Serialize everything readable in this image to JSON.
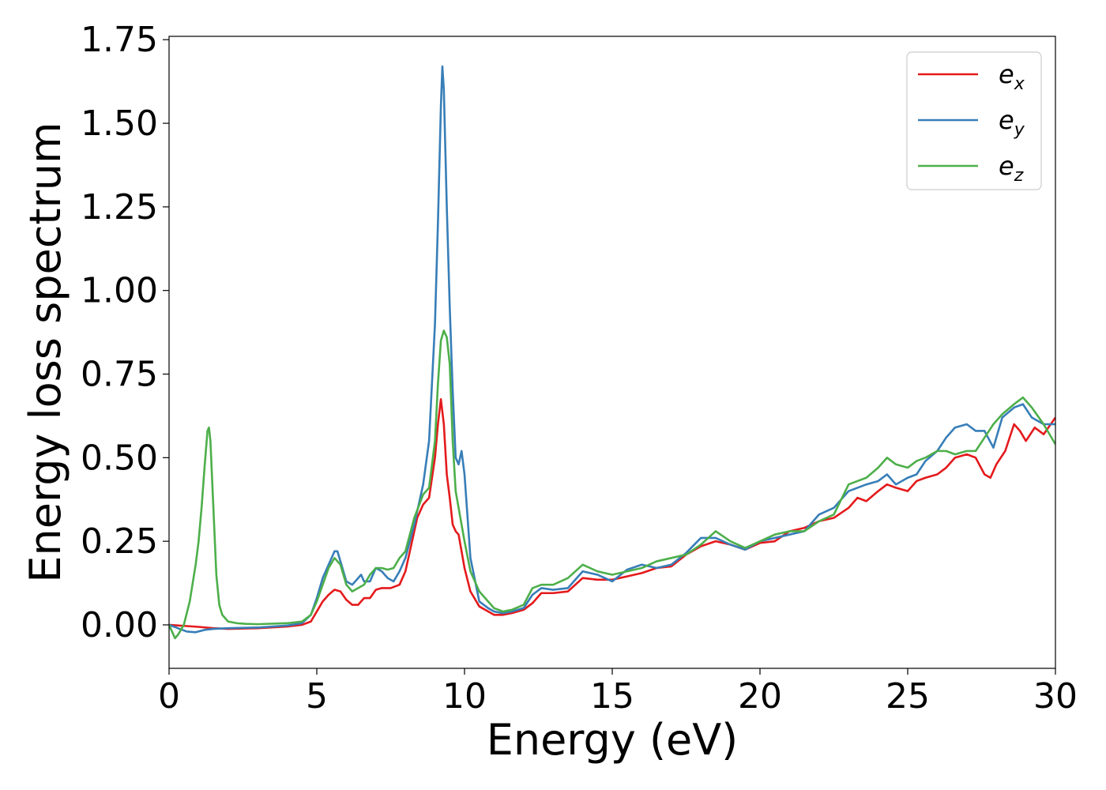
{
  "chart_data": {
    "type": "line",
    "title": "",
    "xlabel": "Energy (eV)",
    "ylabel": "Energy loss spectrum",
    "xlim": [
      0,
      30
    ],
    "ylim": [
      -0.13,
      1.76
    ],
    "xticks": [
      0,
      5,
      10,
      15,
      20,
      25,
      30
    ],
    "xtick_labels": [
      "0",
      "5",
      "10",
      "15",
      "20",
      "25",
      "30"
    ],
    "yticks": [
      0.0,
      0.25,
      0.5,
      0.75,
      1.0,
      1.25,
      1.5,
      1.75
    ],
    "ytick_labels": [
      "0.00",
      "0.25",
      "0.50",
      "0.75",
      "1.00",
      "1.25",
      "1.50",
      "1.75"
    ],
    "grid": false,
    "legend_position": "top-right",
    "series": [
      {
        "name": "e_x",
        "legend_base": "e",
        "legend_sub": "x",
        "color": "#e41a1c",
        "x": [
          0,
          0.5,
          1.0,
          1.5,
          2.0,
          3.0,
          4.0,
          4.5,
          4.8,
          5.0,
          5.2,
          5.4,
          5.6,
          5.8,
          6.0,
          6.2,
          6.4,
          6.6,
          6.8,
          7.0,
          7.2,
          7.5,
          7.8,
          8.0,
          8.2,
          8.4,
          8.6,
          8.8,
          9.0,
          9.1,
          9.2,
          9.3,
          9.4,
          9.5,
          9.6,
          9.7,
          9.8,
          9.9,
          10.0,
          10.2,
          10.5,
          10.8,
          11.0,
          11.3,
          11.6,
          12.0,
          12.3,
          12.6,
          13.0,
          13.5,
          14.0,
          14.5,
          15.0,
          15.5,
          16.0,
          16.5,
          17.0,
          17.5,
          18.0,
          18.5,
          19.0,
          19.5,
          20.0,
          20.5,
          21.0,
          21.5,
          22.0,
          22.5,
          23.0,
          23.3,
          23.6,
          24.0,
          24.3,
          24.6,
          25.0,
          25.3,
          25.6,
          26.0,
          26.3,
          26.6,
          27.0,
          27.3,
          27.6,
          27.8,
          28.0,
          28.3,
          28.6,
          28.8,
          29.0,
          29.3,
          29.6,
          30.0
        ],
        "y": [
          0.0,
          -0.003,
          -0.006,
          -0.01,
          -0.012,
          -0.01,
          -0.005,
          0.0,
          0.01,
          0.04,
          0.07,
          0.09,
          0.105,
          0.1,
          0.075,
          0.06,
          0.06,
          0.08,
          0.08,
          0.105,
          0.11,
          0.11,
          0.12,
          0.16,
          0.24,
          0.32,
          0.36,
          0.38,
          0.5,
          0.6,
          0.675,
          0.6,
          0.45,
          0.38,
          0.3,
          0.28,
          0.27,
          0.22,
          0.17,
          0.1,
          0.055,
          0.04,
          0.03,
          0.03,
          0.035,
          0.045,
          0.065,
          0.095,
          0.095,
          0.1,
          0.14,
          0.135,
          0.135,
          0.145,
          0.155,
          0.17,
          0.175,
          0.21,
          0.235,
          0.25,
          0.24,
          0.225,
          0.245,
          0.25,
          0.28,
          0.29,
          0.31,
          0.32,
          0.35,
          0.38,
          0.37,
          0.4,
          0.42,
          0.41,
          0.4,
          0.43,
          0.44,
          0.45,
          0.47,
          0.5,
          0.51,
          0.5,
          0.45,
          0.44,
          0.48,
          0.52,
          0.6,
          0.58,
          0.55,
          0.59,
          0.57,
          0.62
        ]
      },
      {
        "name": "e_y",
        "legend_base": "e",
        "legend_sub": "y",
        "color": "#377eb8",
        "x": [
          0,
          0.3,
          0.6,
          0.9,
          1.2,
          1.5,
          2.0,
          3.0,
          4.0,
          4.5,
          4.8,
          5.0,
          5.2,
          5.4,
          5.6,
          5.7,
          5.8,
          6.0,
          6.2,
          6.4,
          6.5,
          6.6,
          6.8,
          7.0,
          7.2,
          7.4,
          7.6,
          7.8,
          8.0,
          8.3,
          8.6,
          8.8,
          9.0,
          9.1,
          9.2,
          9.25,
          9.3,
          9.4,
          9.5,
          9.6,
          9.7,
          9.8,
          9.9,
          10.0,
          10.2,
          10.5,
          10.8,
          11.0,
          11.3,
          11.6,
          12.0,
          12.3,
          12.6,
          13.0,
          13.5,
          14.0,
          14.5,
          15.0,
          15.5,
          16.0,
          16.5,
          17.0,
          17.5,
          18.0,
          18.5,
          19.0,
          19.5,
          20.0,
          20.5,
          21.0,
          21.5,
          22.0,
          22.5,
          23.0,
          23.3,
          23.6,
          24.0,
          24.3,
          24.6,
          25.0,
          25.3,
          25.6,
          26.0,
          26.3,
          26.6,
          27.0,
          27.3,
          27.6,
          27.9,
          28.2,
          28.6,
          28.9,
          29.2,
          29.6,
          30.0
        ],
        "y": [
          0.0,
          -0.01,
          -0.02,
          -0.022,
          -0.015,
          -0.012,
          -0.01,
          -0.008,
          -0.002,
          0.005,
          0.03,
          0.08,
          0.14,
          0.18,
          0.22,
          0.22,
          0.19,
          0.13,
          0.12,
          0.14,
          0.15,
          0.13,
          0.13,
          0.17,
          0.16,
          0.14,
          0.13,
          0.16,
          0.2,
          0.3,
          0.42,
          0.55,
          0.9,
          1.2,
          1.55,
          1.67,
          1.6,
          1.25,
          0.95,
          0.7,
          0.5,
          0.48,
          0.52,
          0.45,
          0.2,
          0.07,
          0.05,
          0.04,
          0.035,
          0.04,
          0.05,
          0.09,
          0.11,
          0.105,
          0.11,
          0.16,
          0.15,
          0.13,
          0.165,
          0.18,
          0.17,
          0.18,
          0.215,
          0.26,
          0.26,
          0.24,
          0.225,
          0.25,
          0.26,
          0.27,
          0.28,
          0.33,
          0.35,
          0.4,
          0.41,
          0.42,
          0.43,
          0.45,
          0.42,
          0.44,
          0.45,
          0.49,
          0.52,
          0.56,
          0.59,
          0.6,
          0.58,
          0.58,
          0.53,
          0.62,
          0.65,
          0.66,
          0.62,
          0.6,
          0.6
        ]
      },
      {
        "name": "e_z",
        "legend_base": "e",
        "legend_sub": "z",
        "color": "#4daf4a",
        "x": [
          0,
          0.1,
          0.2,
          0.3,
          0.5,
          0.7,
          0.9,
          1.0,
          1.1,
          1.2,
          1.3,
          1.35,
          1.4,
          1.5,
          1.6,
          1.7,
          1.8,
          2.0,
          2.3,
          2.6,
          3.0,
          4.0,
          4.5,
          4.8,
          5.0,
          5.2,
          5.4,
          5.6,
          5.8,
          6.0,
          6.2,
          6.4,
          6.6,
          6.8,
          7.0,
          7.2,
          7.4,
          7.6,
          7.8,
          8.0,
          8.3,
          8.6,
          8.8,
          9.0,
          9.1,
          9.2,
          9.3,
          9.4,
          9.5,
          9.6,
          9.7,
          9.8,
          9.9,
          10.0,
          10.2,
          10.5,
          10.8,
          11.0,
          11.3,
          11.6,
          12.0,
          12.3,
          12.6,
          13.0,
          13.5,
          14.0,
          14.5,
          15.0,
          15.5,
          16.0,
          16.5,
          17.0,
          17.5,
          18.0,
          18.5,
          19.0,
          19.5,
          20.0,
          20.5,
          21.0,
          21.5,
          22.0,
          22.5,
          23.0,
          23.3,
          23.6,
          24.0,
          24.3,
          24.6,
          25.0,
          25.3,
          25.6,
          26.0,
          26.3,
          26.6,
          27.0,
          27.3,
          27.6,
          27.9,
          28.2,
          28.6,
          28.9,
          29.2,
          29.6,
          30.0
        ],
        "y": [
          0.0,
          -0.02,
          -0.04,
          -0.03,
          0.0,
          0.07,
          0.18,
          0.25,
          0.35,
          0.47,
          0.58,
          0.59,
          0.55,
          0.35,
          0.15,
          0.06,
          0.03,
          0.01,
          0.005,
          0.003,
          0.002,
          0.005,
          0.01,
          0.03,
          0.07,
          0.12,
          0.17,
          0.2,
          0.18,
          0.12,
          0.1,
          0.11,
          0.12,
          0.15,
          0.17,
          0.17,
          0.165,
          0.17,
          0.2,
          0.22,
          0.32,
          0.39,
          0.41,
          0.55,
          0.72,
          0.85,
          0.88,
          0.86,
          0.78,
          0.55,
          0.4,
          0.35,
          0.3,
          0.25,
          0.16,
          0.1,
          0.07,
          0.05,
          0.04,
          0.045,
          0.06,
          0.11,
          0.12,
          0.12,
          0.14,
          0.18,
          0.16,
          0.15,
          0.16,
          0.17,
          0.19,
          0.2,
          0.21,
          0.24,
          0.28,
          0.25,
          0.23,
          0.25,
          0.27,
          0.28,
          0.28,
          0.31,
          0.33,
          0.42,
          0.43,
          0.44,
          0.47,
          0.5,
          0.48,
          0.47,
          0.49,
          0.5,
          0.52,
          0.52,
          0.51,
          0.52,
          0.52,
          0.56,
          0.6,
          0.63,
          0.66,
          0.68,
          0.65,
          0.6,
          0.54
        ]
      }
    ]
  }
}
